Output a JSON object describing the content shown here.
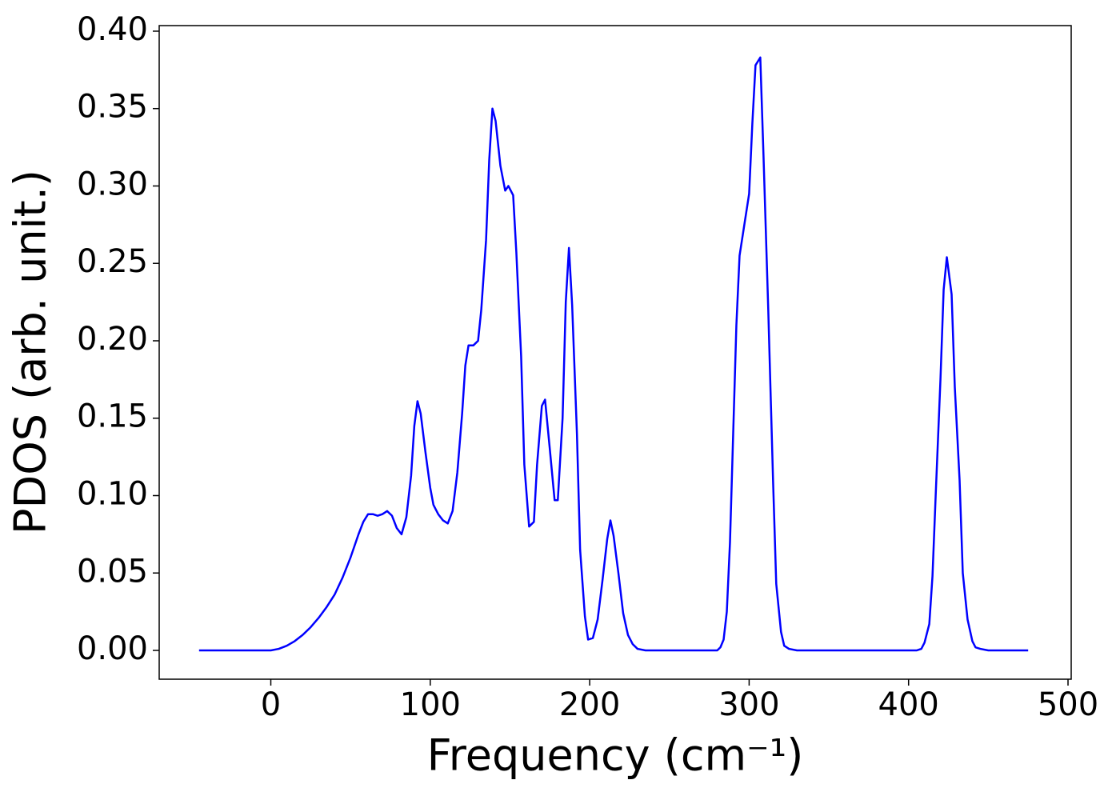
{
  "chart_data": {
    "type": "line",
    "xlabel": "Frequency (cm⁻¹)",
    "ylabel": "PDOS (arb. unit.)",
    "xlim": [
      -70,
      502
    ],
    "ylim": [
      -0.0186,
      0.4036
    ],
    "xticks": [
      0,
      100,
      200,
      300,
      400,
      500
    ],
    "yticks": [
      {
        "value": 0,
        "label": "0.00"
      },
      {
        "value": 0.05,
        "label": "0.05"
      },
      {
        "value": 0.1,
        "label": "0.10"
      },
      {
        "value": 0.15,
        "label": "0.15"
      },
      {
        "value": 0.2,
        "label": "0.20"
      },
      {
        "value": 0.25,
        "label": "0.25"
      },
      {
        "value": 0.3,
        "label": "0.30"
      },
      {
        "value": 0.35,
        "label": "0.35"
      },
      {
        "value": 0.4,
        "label": "0.40"
      }
    ],
    "grid": false,
    "x": [
      -45,
      0,
      5,
      10,
      15,
      20,
      25,
      30,
      35,
      40,
      45,
      50,
      55,
      58,
      61,
      64,
      67,
      70,
      73,
      76,
      79,
      82,
      85,
      88,
      90,
      92,
      94,
      97,
      100,
      102,
      105,
      108,
      111,
      114,
      117,
      120,
      122,
      124,
      127,
      130,
      132,
      135,
      137,
      139,
      141,
      144,
      147,
      149,
      152,
      154,
      157,
      159,
      162,
      165,
      167,
      170,
      172,
      175,
      178,
      180,
      183,
      185,
      187,
      189,
      192,
      194,
      197,
      199,
      202,
      205,
      208,
      211,
      213,
      215,
      218,
      221,
      224,
      227,
      230,
      235,
      280,
      282,
      284,
      286,
      288,
      290,
      292,
      294,
      297,
      300,
      302,
      304,
      307,
      309,
      312,
      315,
      317,
      320,
      322,
      325,
      330,
      405,
      408,
      410,
      413,
      415,
      417,
      420,
      422,
      424,
      427,
      429,
      432,
      434,
      437,
      440,
      442,
      445,
      450,
      475
    ],
    "series": [
      {
        "color": "#0000ff",
        "values": [
          0,
          0,
          0.001,
          0.003,
          0.006,
          0.01,
          0.015,
          0.021,
          0.028,
          0.036,
          0.047,
          0.06,
          0.075,
          0.083,
          0.088,
          0.088,
          0.087,
          0.088,
          0.09,
          0.087,
          0.079,
          0.075,
          0.086,
          0.113,
          0.145,
          0.161,
          0.153,
          0.128,
          0.105,
          0.094,
          0.088,
          0.084,
          0.082,
          0.09,
          0.115,
          0.153,
          0.184,
          0.197,
          0.197,
          0.2,
          0.22,
          0.265,
          0.317,
          0.35,
          0.342,
          0.313,
          0.297,
          0.3,
          0.294,
          0.257,
          0.19,
          0.12,
          0.08,
          0.083,
          0.12,
          0.158,
          0.162,
          0.13,
          0.097,
          0.097,
          0.15,
          0.225,
          0.26,
          0.223,
          0.14,
          0.065,
          0.022,
          0.007,
          0.008,
          0.02,
          0.045,
          0.072,
          0.084,
          0.074,
          0.05,
          0.024,
          0.01,
          0.004,
          0.001,
          0,
          0,
          0.002,
          0.007,
          0.025,
          0.07,
          0.14,
          0.21,
          0.255,
          0.275,
          0.295,
          0.34,
          0.378,
          0.383,
          0.32,
          0.22,
          0.11,
          0.043,
          0.012,
          0.003,
          0.001,
          0,
          0,
          0.001,
          0.005,
          0.017,
          0.048,
          0.1,
          0.175,
          0.233,
          0.254,
          0.23,
          0.17,
          0.11,
          0.05,
          0.02,
          0.006,
          0.002,
          0.001,
          0,
          0
        ]
      }
    ]
  }
}
